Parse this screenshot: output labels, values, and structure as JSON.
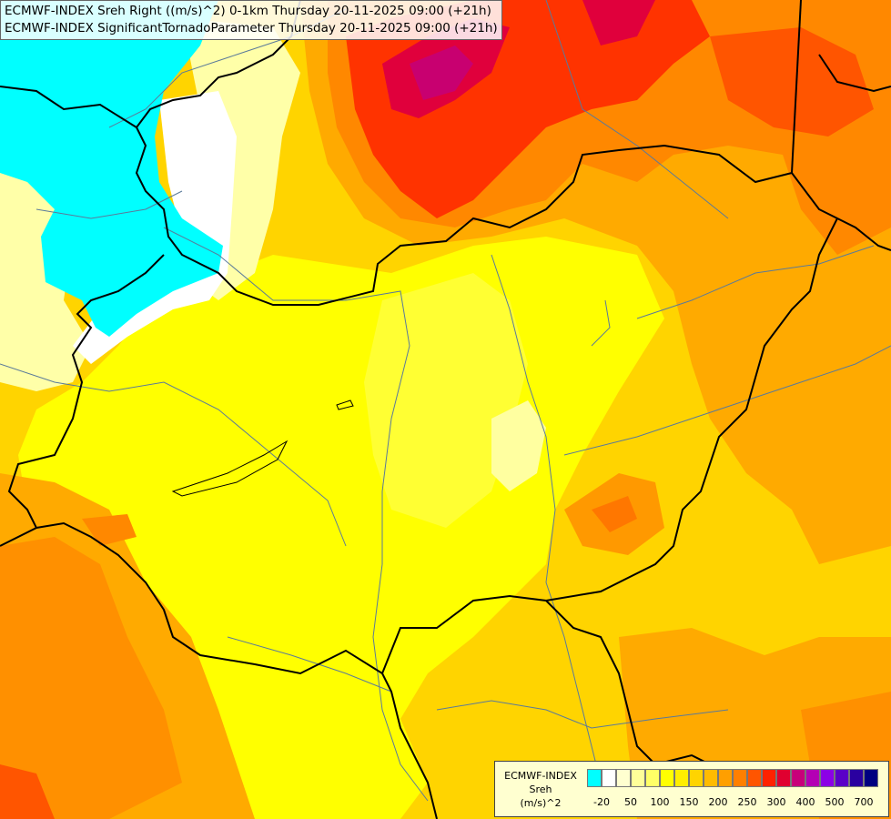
{
  "header": {
    "line1": "ECMWF-INDEX Sreh Right ((m/s)^2) 0-1km Thursday 20-11-2025 09:00 (+21h)",
    "line2": "ECMWF-INDEX SignificantTornadoParameter Thursday 20-11-2025 09:00 (+21h)"
  },
  "legend": {
    "model": "ECMWF-INDEX",
    "variable": "Sreh",
    "unit": "(m/s)^2",
    "colors": [
      "#00ffff",
      "#ffffff",
      "#ffffd0",
      "#ffff99",
      "#ffff66",
      "#ffff00",
      "#ffee00",
      "#ffd400",
      "#ffbb00",
      "#ff9f00",
      "#ff7f00",
      "#ff5500",
      "#ff2200",
      "#e00030",
      "#c8007a",
      "#b400b4",
      "#8c00e6",
      "#5a00c8",
      "#2a00a0",
      "#000080"
    ],
    "ticks": [
      "-20",
      "50",
      "100",
      "150",
      "200",
      "250",
      "300",
      "400",
      "500",
      "700"
    ]
  },
  "colors": {
    "cyan": "#00ffff",
    "white": "#ffffff",
    "pale": "#ffffa8",
    "yellow": "#ffff00",
    "gold": "#ffd400",
    "orange": "#ffaa00",
    "deep_orange": "#ff7f00",
    "red": "#ff2a00",
    "crimson": "#e0003c",
    "magenta": "#c80070",
    "border": "#000000",
    "river": "#5a7a9a"
  }
}
